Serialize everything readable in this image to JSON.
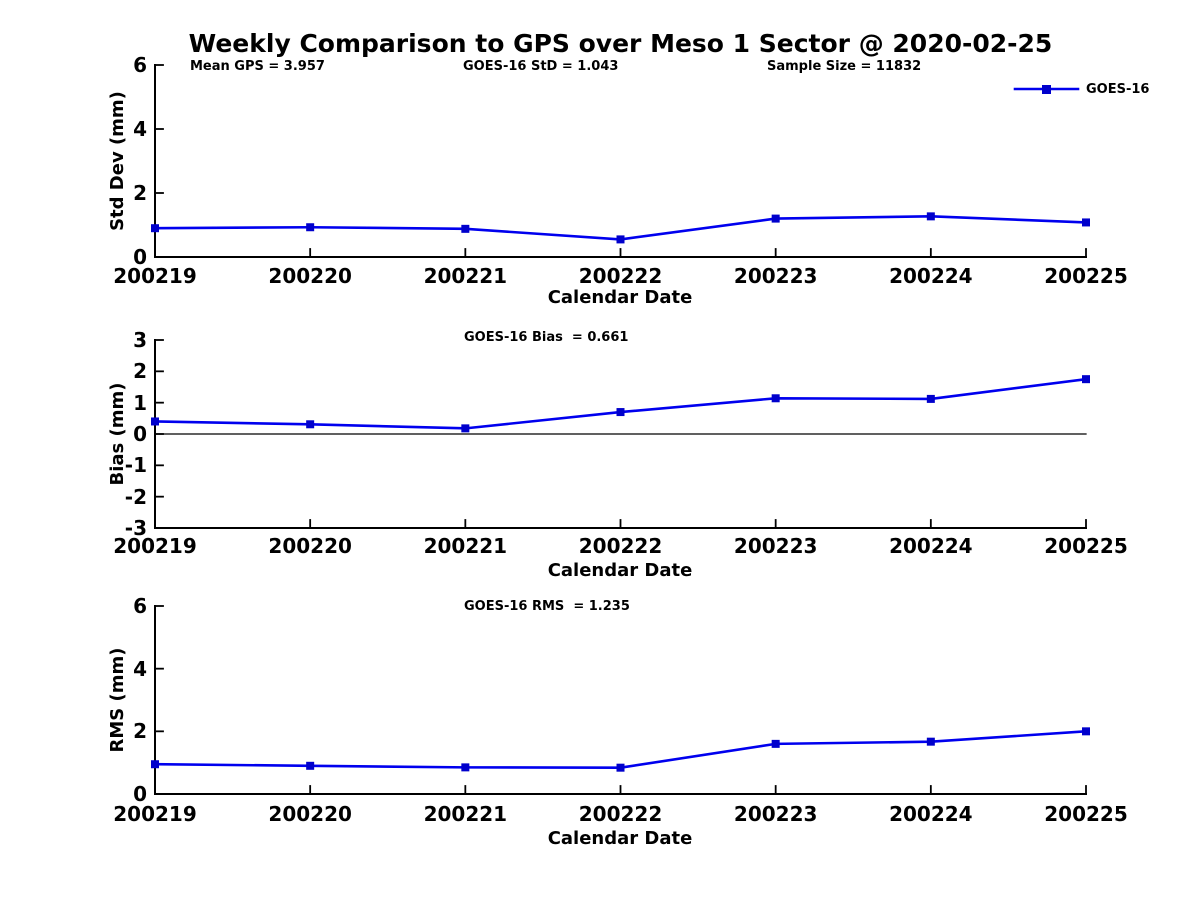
{
  "title": "Weekly Comparison to GPS over Meso 1 Sector @ 2020-02-25",
  "legend": {
    "label": "GOES-16",
    "line_color": "#0000ee",
    "marker_color": "#0000cc",
    "marker": "square"
  },
  "chart_data": [
    {
      "type": "line",
      "panel": "std_dev",
      "annotations": [
        "Mean GPS = 3.957",
        "GOES-16 StD = 1.043",
        "Sample Size = 11832"
      ],
      "x": [
        "200219",
        "200220",
        "200221",
        "200222",
        "200223",
        "200224",
        "200225"
      ],
      "series": [
        {
          "name": "GOES-16",
          "values": [
            0.9,
            0.93,
            0.88,
            0.55,
            1.2,
            1.27,
            1.08
          ]
        }
      ],
      "xlabel": "Calendar Date",
      "ylabel": "Std Dev (mm)",
      "ylim": [
        0,
        6
      ],
      "yticks": [
        0,
        2,
        4,
        6
      ],
      "zero_line": false,
      "line_color": "#0000ee",
      "marker_color": "#0000cc",
      "marker": "square",
      "legend_position": "top-right"
    },
    {
      "type": "line",
      "panel": "bias",
      "annotations": [
        "GOES-16 Bias  = 0.661"
      ],
      "x": [
        "200219",
        "200220",
        "200221",
        "200222",
        "200223",
        "200224",
        "200225"
      ],
      "series": [
        {
          "name": "GOES-16",
          "values": [
            0.4,
            0.31,
            0.18,
            0.7,
            1.14,
            1.12,
            1.75
          ]
        }
      ],
      "xlabel": "Calendar Date",
      "ylabel": "Bias (mm)",
      "ylim": [
        -3,
        3
      ],
      "yticks": [
        -3,
        -2,
        -1,
        0,
        1,
        2,
        3
      ],
      "zero_line": true,
      "line_color": "#0000ee",
      "marker_color": "#0000cc",
      "marker": "square"
    },
    {
      "type": "line",
      "panel": "rms",
      "annotations": [
        "GOES-16 RMS  = 1.235"
      ],
      "x": [
        "200219",
        "200220",
        "200221",
        "200222",
        "200223",
        "200224",
        "200225"
      ],
      "series": [
        {
          "name": "GOES-16",
          "values": [
            0.95,
            0.9,
            0.85,
            0.84,
            1.6,
            1.67,
            2.0
          ]
        }
      ],
      "xlabel": "Calendar Date",
      "ylabel": "RMS (mm)",
      "ylim": [
        0,
        6
      ],
      "yticks": [
        0,
        2,
        4,
        6
      ],
      "zero_line": false,
      "line_color": "#0000ee",
      "marker_color": "#0000cc",
      "marker": "square"
    }
  ]
}
